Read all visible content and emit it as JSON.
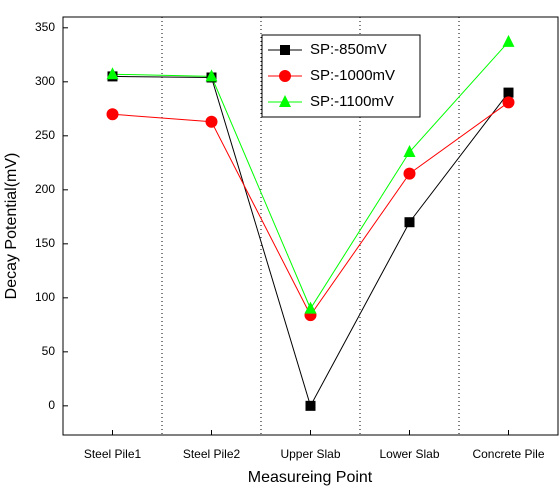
{
  "chart_data": {
    "type": "line",
    "x_label": "Measureing Point",
    "y_label": "Decay Potential(mV)",
    "categories": [
      "Steel Pile1",
      "Steel Pile2",
      "Upper Slab",
      "Lower Slab",
      "Concrete Pile"
    ],
    "series": [
      {
        "name": "SP:-850mV",
        "color": "#000000",
        "marker": "square",
        "values": [
          305,
          304,
          0,
          170,
          290
        ]
      },
      {
        "name": "SP:-1000mV",
        "color": "#ff0000",
        "marker": "circle",
        "values": [
          270,
          263,
          84,
          215,
          281
        ]
      },
      {
        "name": "SP:-1100mV",
        "color": "#00ff00",
        "marker": "triangle",
        "values": [
          307,
          305,
          90,
          235,
          337
        ]
      }
    ],
    "ylim": [
      -27,
      360
    ],
    "yticks": [
      0,
      50,
      100,
      150,
      200,
      250,
      300,
      350
    ],
    "legend": "upper center"
  }
}
